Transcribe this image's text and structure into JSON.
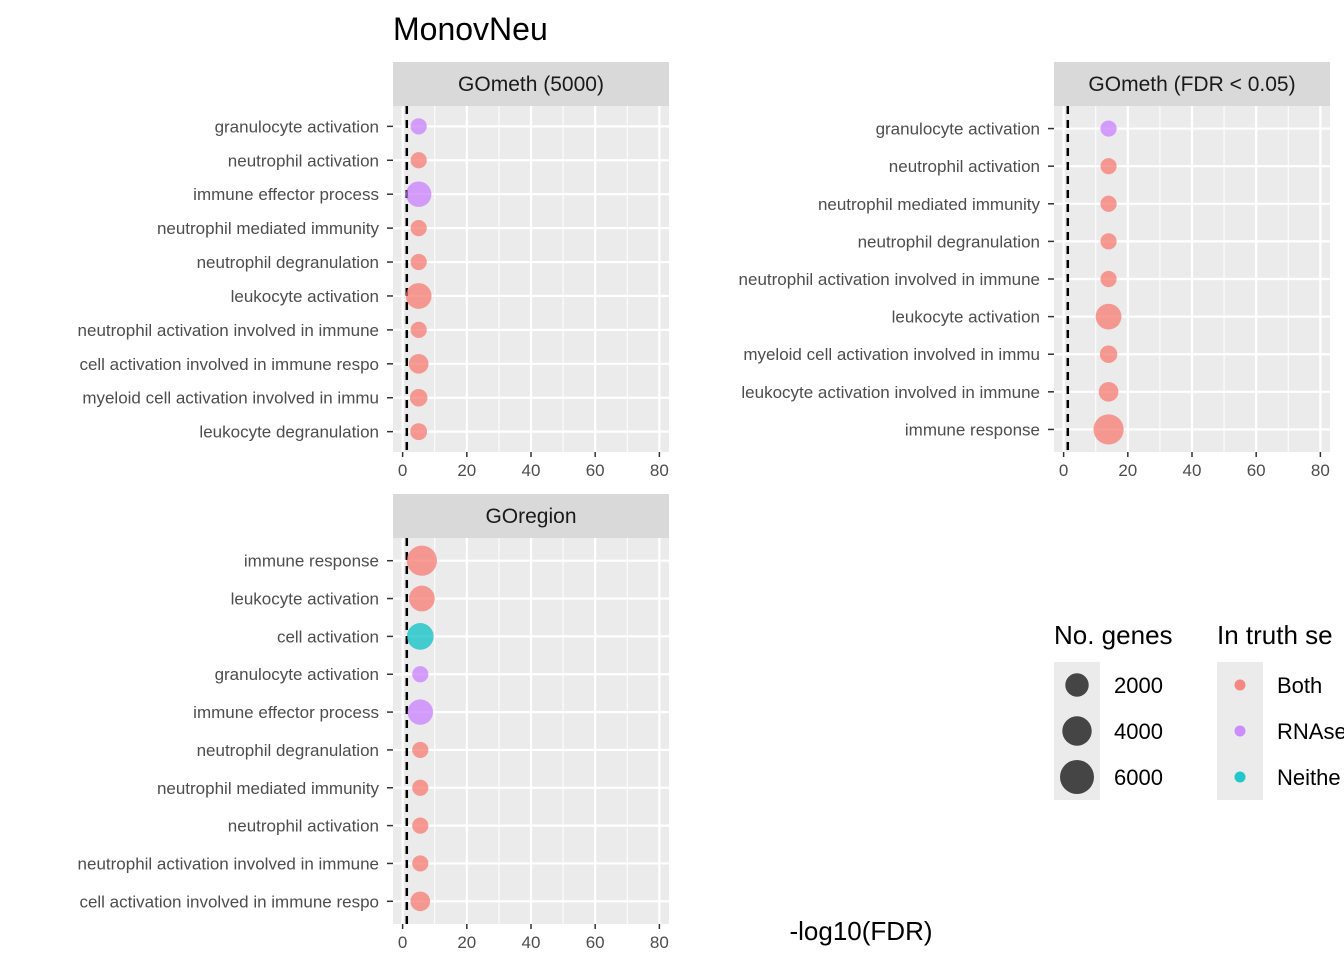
{
  "chart_data": {
    "type": "scatter",
    "title": "MonovNeu",
    "xlabel": "-log10(FDR)",
    "ylabel": "",
    "xlim": [
      -3,
      83
    ],
    "x_ticks": [
      0,
      20,
      40,
      60,
      80
    ],
    "reference_line_x": 1.3,
    "grid": true,
    "colors": {
      "Both": "#F8766D",
      "RNAseq": "#C77CFF",
      "Neither": "#00BFC4",
      "size_legend": "#333333",
      "panel_background": "#EBEBEB",
      "strip_background": "#D9D9D9"
    },
    "panels": [
      {
        "title": "GOmeth (5000)",
        "terms": [
          {
            "term": "granulocyte activation",
            "x": 5,
            "genes": 500,
            "truth": "RNAseq"
          },
          {
            "term": "neutrophil activation",
            "x": 5,
            "genes": 500,
            "truth": "Both"
          },
          {
            "term": "immune effector process",
            "x": 5,
            "genes": 2600,
            "truth": "RNAseq"
          },
          {
            "term": "neutrophil mediated immunity",
            "x": 5,
            "genes": 500,
            "truth": "Both"
          },
          {
            "term": "neutrophil degranulation",
            "x": 5,
            "genes": 500,
            "truth": "Both"
          },
          {
            "term": "leukocyte activation",
            "x": 5,
            "genes": 2700,
            "truth": "Both"
          },
          {
            "term": "neutrophil activation involved in immune",
            "x": 5,
            "genes": 500,
            "truth": "Both"
          },
          {
            "term": "cell activation involved in immune respo",
            "x": 5,
            "genes": 1100,
            "truth": "Both"
          },
          {
            "term": "myeloid cell activation involved in immu",
            "x": 5,
            "genes": 700,
            "truth": "Both"
          },
          {
            "term": "leukocyte degranulation",
            "x": 5,
            "genes": 600,
            "truth": "Both"
          }
        ]
      },
      {
        "title": "GOmeth (FDR < 0.05)",
        "terms": [
          {
            "term": "granulocyte activation",
            "x": 14,
            "genes": 500,
            "truth": "RNAseq"
          },
          {
            "term": "neutrophil activation",
            "x": 14,
            "genes": 500,
            "truth": "Both"
          },
          {
            "term": "neutrophil mediated immunity",
            "x": 14,
            "genes": 500,
            "truth": "Both"
          },
          {
            "term": "neutrophil degranulation",
            "x": 14,
            "genes": 500,
            "truth": "Both"
          },
          {
            "term": "neutrophil activation involved in immune",
            "x": 14,
            "genes": 500,
            "truth": "Both"
          },
          {
            "term": "leukocyte activation",
            "x": 14,
            "genes": 2700,
            "truth": "Both"
          },
          {
            "term": "myeloid cell activation involved in immu",
            "x": 14,
            "genes": 700,
            "truth": "Both"
          },
          {
            "term": "leukocyte activation involved in immune ",
            "x": 14,
            "genes": 1100,
            "truth": "Both"
          },
          {
            "term": "immune response",
            "x": 14,
            "genes": 4300,
            "truth": "Both"
          }
        ]
      },
      {
        "title": "GOregion",
        "terms": [
          {
            "term": "immune response",
            "x": 6,
            "genes": 4300,
            "truth": "Both"
          },
          {
            "term": "leukocyte activation",
            "x": 6,
            "genes": 2700,
            "truth": "Both"
          },
          {
            "term": "cell activation",
            "x": 5.5,
            "genes": 3000,
            "truth": "Neither"
          },
          {
            "term": "granulocyte activation",
            "x": 5.5,
            "genes": 500,
            "truth": "RNAseq"
          },
          {
            "term": "immune effector process",
            "x": 5.5,
            "genes": 2600,
            "truth": "RNAseq"
          },
          {
            "term": "neutrophil degranulation",
            "x": 5.5,
            "genes": 500,
            "truth": "Both"
          },
          {
            "term": "neutrophil mediated immunity",
            "x": 5.5,
            "genes": 500,
            "truth": "Both"
          },
          {
            "term": "neutrophil activation",
            "x": 5.5,
            "genes": 500,
            "truth": "Both"
          },
          {
            "term": "neutrophil activation involved in immune",
            "x": 5.5,
            "genes": 500,
            "truth": "Both"
          },
          {
            "term": "cell activation involved in immune respo",
            "x": 5.5,
            "genes": 1100,
            "truth": "Both"
          }
        ]
      }
    ],
    "legend": {
      "placement": "right",
      "size": {
        "title": "No. genes",
        "breaks": [
          2000,
          4000,
          6000
        ],
        "labels": [
          "2000",
          "4000",
          "6000"
        ]
      },
      "color": {
        "title": "In truth se",
        "labels": [
          "Both",
          "RNAse",
          "Neithe"
        ],
        "keys": [
          "Both",
          "RNAseq",
          "Neither"
        ]
      }
    }
  }
}
